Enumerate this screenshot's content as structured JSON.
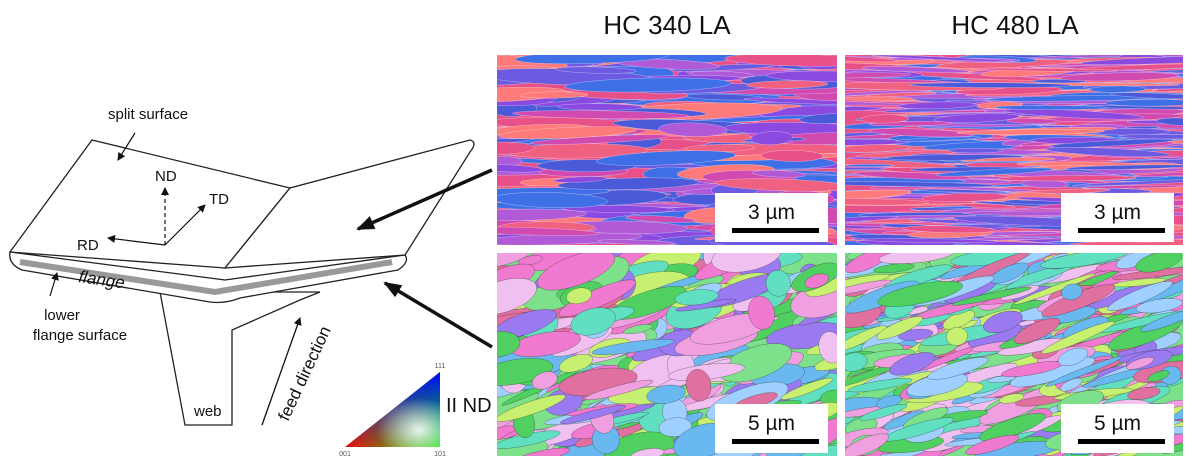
{
  "titles": [
    "HC 340 LA",
    "HC 480 LA"
  ],
  "diagram": {
    "split_surface": "split surface",
    "nd": "ND",
    "td": "TD",
    "rd": "RD",
    "flange": "flange",
    "lower_flange_surface": [
      "lower",
      "flange surface"
    ],
    "web": "web",
    "feed_direction": "feed direction"
  },
  "legend": {
    "title": "II ND",
    "top": "111",
    "left": "001",
    "right": "101"
  },
  "panels": [
    {
      "scale": "3 µm"
    },
    {
      "scale": "3 µm"
    },
    {
      "scale": "5 µm"
    },
    {
      "scale": "5 µm"
    }
  ]
}
